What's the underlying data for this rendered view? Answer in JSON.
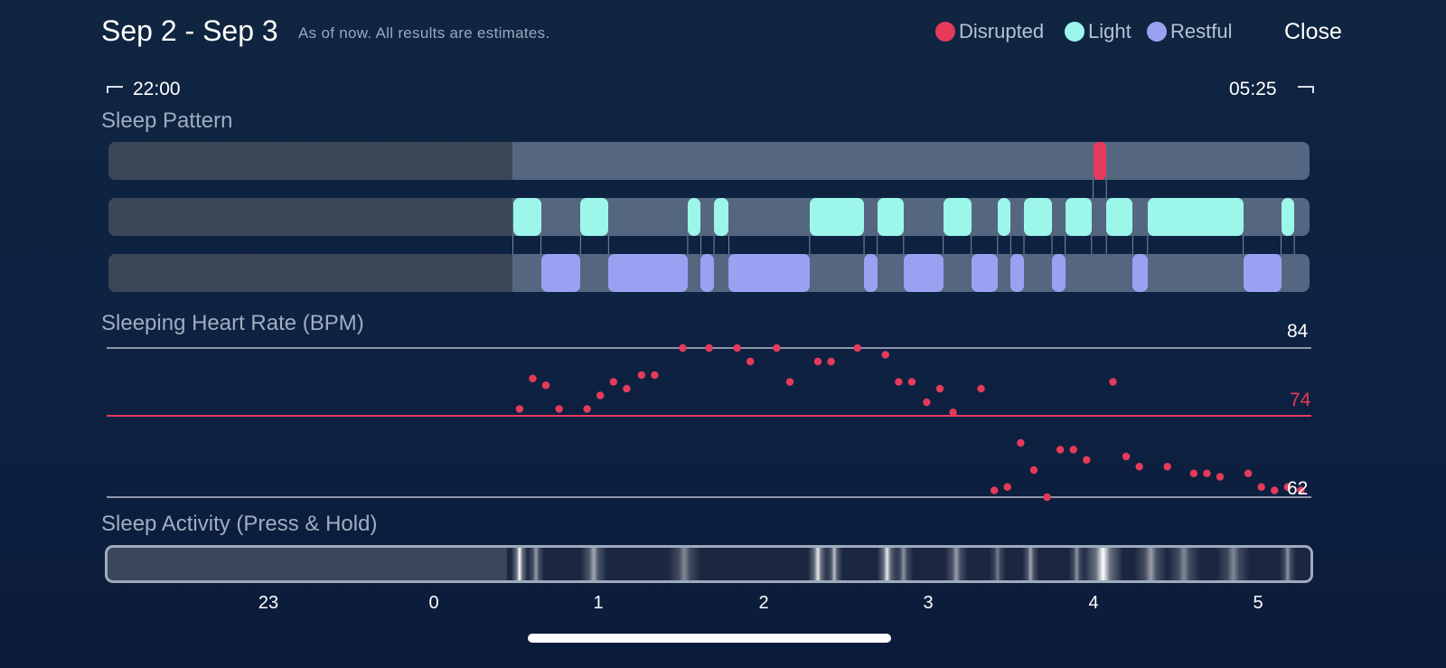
{
  "header": {
    "title": "Sep 2 - Sep 3",
    "subtitle": "As of now. All results are estimates.",
    "close_label": "Close",
    "legend": [
      {
        "label": "Disrupted",
        "color": "#e63a5b"
      },
      {
        "label": "Light",
        "color": "#9cf7ea"
      },
      {
        "label": "Restful",
        "color": "#9ba1f2"
      }
    ]
  },
  "time_range": {
    "start": "22:00",
    "end": "05:25"
  },
  "sections": {
    "pattern": "Sleep Pattern",
    "heart_rate": "Sleeping Heart Rate (BPM)",
    "activity": "Sleep Activity (Press & Hold)"
  },
  "sleep_pattern": {
    "disrupted": [
      [
        4.0,
        4.08
      ]
    ],
    "light": [
      [
        0.48,
        0.65
      ],
      [
        0.89,
        1.06
      ],
      [
        1.54,
        1.62
      ],
      [
        1.7,
        1.79
      ],
      [
        2.28,
        2.61
      ],
      [
        2.69,
        2.85
      ],
      [
        3.09,
        3.26
      ],
      [
        3.42,
        3.5
      ],
      [
        3.58,
        3.75
      ],
      [
        3.83,
        3.99
      ],
      [
        4.08,
        4.24
      ],
      [
        4.33,
        4.91
      ],
      [
        5.14,
        5.22
      ]
    ],
    "restful": [
      [
        0.65,
        0.89
      ],
      [
        1.06,
        1.54
      ],
      [
        1.62,
        1.7
      ],
      [
        1.79,
        2.28
      ],
      [
        2.61,
        2.69
      ],
      [
        2.85,
        3.09
      ],
      [
        3.26,
        3.42
      ],
      [
        3.5,
        3.58
      ],
      [
        3.75,
        3.83
      ],
      [
        4.24,
        4.33
      ],
      [
        4.91,
        5.14
      ]
    ]
  },
  "chart_data": {
    "type": "scatter",
    "title": "Sleeping Heart Rate (BPM)",
    "reference_lines": {
      "max": 84,
      "avg": 74,
      "min": 62
    },
    "x_ticks": [
      "23",
      "0",
      "1",
      "2",
      "3",
      "4",
      "5"
    ],
    "xlim": [
      22.0,
      29.42
    ],
    "ylim": [
      62,
      84
    ],
    "points": [
      [
        24.52,
        75
      ],
      [
        24.6,
        79.5
      ],
      [
        24.68,
        78.5
      ],
      [
        24.76,
        75
      ],
      [
        24.93,
        75
      ],
      [
        25.01,
        77
      ],
      [
        25.09,
        79
      ],
      [
        25.17,
        78
      ],
      [
        25.26,
        80
      ],
      [
        25.34,
        80
      ],
      [
        25.51,
        84
      ],
      [
        25.67,
        84
      ],
      [
        25.84,
        84
      ],
      [
        25.92,
        82
      ],
      [
        26.08,
        84
      ],
      [
        26.16,
        79
      ],
      [
        26.33,
        82
      ],
      [
        26.41,
        82
      ],
      [
        26.57,
        84
      ],
      [
        26.74,
        83
      ],
      [
        26.82,
        79
      ],
      [
        26.9,
        79
      ],
      [
        26.99,
        76
      ],
      [
        27.07,
        78
      ],
      [
        27.15,
        74.5
      ],
      [
        27.32,
        78
      ],
      [
        27.4,
        63
      ],
      [
        27.48,
        63.5
      ],
      [
        27.56,
        70
      ],
      [
        27.64,
        66
      ],
      [
        27.72,
        62
      ],
      [
        27.8,
        69
      ],
      [
        27.88,
        69
      ],
      [
        27.96,
        67.5
      ],
      [
        28.12,
        79
      ],
      [
        28.2,
        68
      ],
      [
        28.28,
        66.5
      ],
      [
        28.45,
        66.5
      ],
      [
        28.61,
        65.5
      ],
      [
        28.69,
        65.5
      ],
      [
        28.77,
        65
      ],
      [
        28.94,
        65.5
      ],
      [
        29.02,
        63.5
      ],
      [
        29.1,
        63
      ],
      [
        29.18,
        63.5
      ],
      [
        29.26,
        63
      ]
    ],
    "point_color": "#e63a5b"
  },
  "activity": {
    "blobs": [
      [
        0.52,
        1.0,
        0.05
      ],
      [
        0.62,
        0.55,
        0.05
      ],
      [
        0.97,
        0.6,
        0.08
      ],
      [
        1.52,
        0.45,
        0.1
      ],
      [
        2.33,
        0.9,
        0.06
      ],
      [
        2.43,
        0.7,
        0.05
      ],
      [
        2.75,
        0.9,
        0.06
      ],
      [
        2.85,
        0.5,
        0.06
      ],
      [
        3.17,
        0.55,
        0.07
      ],
      [
        3.42,
        0.4,
        0.05
      ],
      [
        3.62,
        0.6,
        0.05
      ],
      [
        3.9,
        0.5,
        0.05
      ],
      [
        4.06,
        1.0,
        0.12
      ],
      [
        4.35,
        0.55,
        0.1
      ],
      [
        4.55,
        0.45,
        0.1
      ],
      [
        4.85,
        0.45,
        0.1
      ],
      [
        5.18,
        0.5,
        0.05
      ]
    ]
  }
}
